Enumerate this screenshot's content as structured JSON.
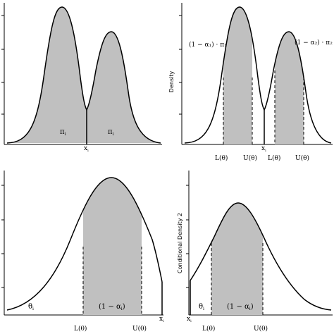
{
  "panels": {
    "top_left": {
      "labels": {
        "pi_left": "π",
        "pi_left_sub": "i",
        "pi_right": "π",
        "pi_right_sub": "i",
        "x_label": "x",
        "x_label_sub": "i"
      }
    },
    "top_right": {
      "ylabel": "Density",
      "annot_left": "(1 − α₁) · π₁",
      "annot_right": "(1 − α₂) · π₂",
      "ticks": [
        "L(θ)",
        "U(θ)",
        "L(θ)",
        "U(θ)"
      ],
      "ticks_sub": [
        "i",
        "i",
        "i",
        "i"
      ],
      "x_label": "x",
      "x_label_sub": "i"
    },
    "bottom_left": {
      "theta": "θ",
      "theta_sub": "i",
      "shade_label": "(1 − α",
      "shade_label_sub": "i",
      "shade_label_end": ")",
      "ticks": [
        "L(θ)",
        "U(θ)"
      ],
      "ticks_sub": [
        "i",
        "i"
      ],
      "x_label": "x",
      "x_label_sub": "i"
    },
    "bottom_right": {
      "ylabel": "Conditional Density 2",
      "theta": "θ",
      "theta_sub": "i",
      "shade_label": "(1 − α",
      "shade_label_sub": "i",
      "shade_label_end": ")",
      "ticks": [
        "L(θ)",
        "U(θ)"
      ],
      "ticks_sub": [
        "i",
        "i"
      ],
      "x_label": "x",
      "x_label_sub": "i"
    }
  },
  "colors": {
    "shade": "#c0c0c0",
    "line": "#000000"
  }
}
